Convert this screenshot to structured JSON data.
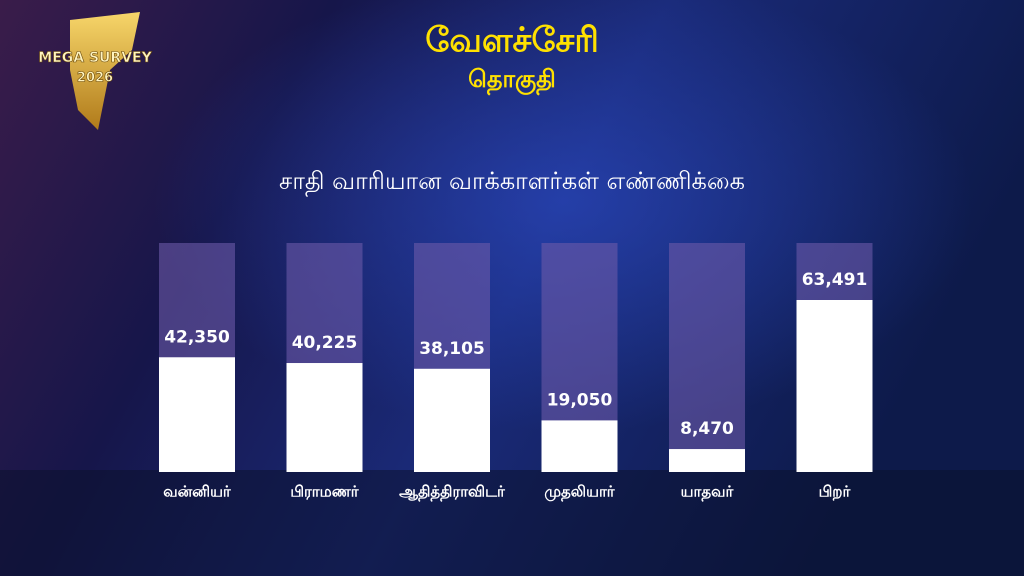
{
  "logo": {
    "line1": "MEGA SURVEY",
    "line2": "2026"
  },
  "chart_data": {
    "type": "bar",
    "title": "வேளச்சேரி",
    "subtitle": "தொகுதி",
    "heading": "சாதி வாரியான வாக்காளர்கள்  எண்ணிக்கை",
    "categories": [
      "வன்னியர்",
      "பிராமணர்",
      "ஆதித்திராவிடர்",
      "முதலியார்",
      "யாதவர்",
      "பிறர்"
    ],
    "values": [
      42350,
      40225,
      38105,
      19050,
      8470,
      63491
    ],
    "value_labels": [
      "42,350",
      "40,225",
      "38,105",
      "19,050",
      "8,470",
      "63,491"
    ],
    "color": "#ffffff",
    "track_color": "#6c5aa8"
  }
}
